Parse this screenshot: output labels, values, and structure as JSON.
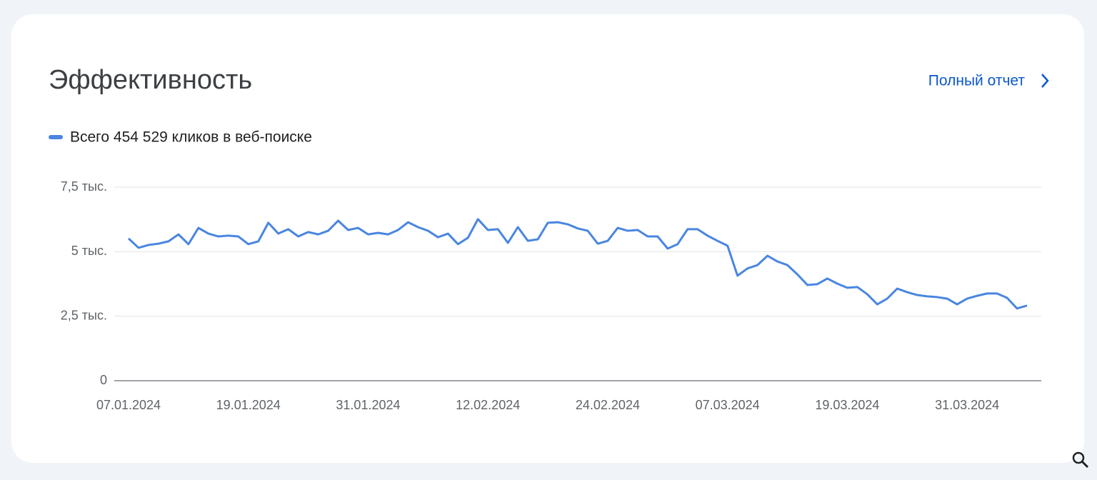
{
  "header": {
    "title": "Эффективность",
    "link": "Полный отчет"
  },
  "chart_data": {
    "type": "line",
    "categories": [
      "07.01.2024",
      null,
      null,
      null,
      null,
      null,
      null,
      null,
      null,
      null,
      null,
      null,
      "19.01.2024",
      null,
      null,
      null,
      null,
      null,
      null,
      null,
      null,
      null,
      null,
      null,
      "31.01.2024",
      null,
      null,
      null,
      null,
      null,
      null,
      null,
      null,
      null,
      null,
      null,
      "12.02.2024",
      null,
      null,
      null,
      null,
      null,
      null,
      null,
      null,
      null,
      null,
      null,
      "24.02.2024",
      null,
      null,
      null,
      null,
      null,
      null,
      null,
      null,
      null,
      null,
      null,
      "07.03.2024",
      null,
      null,
      null,
      null,
      null,
      null,
      null,
      null,
      null,
      null,
      null,
      "19.03.2024",
      null,
      null,
      null,
      null,
      null,
      null,
      null,
      null,
      null,
      null,
      null,
      "31.03.2024",
      null,
      null,
      null,
      null,
      null,
      null
    ],
    "series": [
      {
        "name": "Всего 454 529 кликов в веб-поиске",
        "color": "#4a86e0",
        "values": [
          5510,
          5150,
          5260,
          5310,
          5400,
          5670,
          5290,
          5920,
          5700,
          5590,
          5620,
          5590,
          5290,
          5400,
          6120,
          5700,
          5870,
          5590,
          5760,
          5670,
          5810,
          6200,
          5840,
          5920,
          5670,
          5730,
          5670,
          5840,
          6140,
          5950,
          5810,
          5560,
          5700,
          5290,
          5540,
          6260,
          5840,
          5870,
          5340,
          5950,
          5420,
          5480,
          6120,
          6140,
          6060,
          5900,
          5810,
          5310,
          5420,
          5920,
          5810,
          5840,
          5590,
          5590,
          5120,
          5290,
          5870,
          5870,
          5620,
          5420,
          5230,
          4070,
          4350,
          4480,
          4840,
          4620,
          4480,
          4120,
          3710,
          3740,
          3960,
          3760,
          3600,
          3630,
          3350,
          2960,
          3180,
          3570,
          3430,
          3320,
          3270,
          3240,
          3180,
          2960,
          3180,
          3290,
          3380,
          3380,
          3210,
          2800,
          2910
        ]
      }
    ],
    "ylim": [
      0,
      7500
    ],
    "yticks": [
      0,
      {
        "value": 2500,
        "label": "2,5 тыс."
      },
      {
        "value": 5000,
        "label": "5 тыс."
      },
      {
        "value": 7500,
        "label": "7,5 тыс."
      }
    ],
    "grid": true
  }
}
